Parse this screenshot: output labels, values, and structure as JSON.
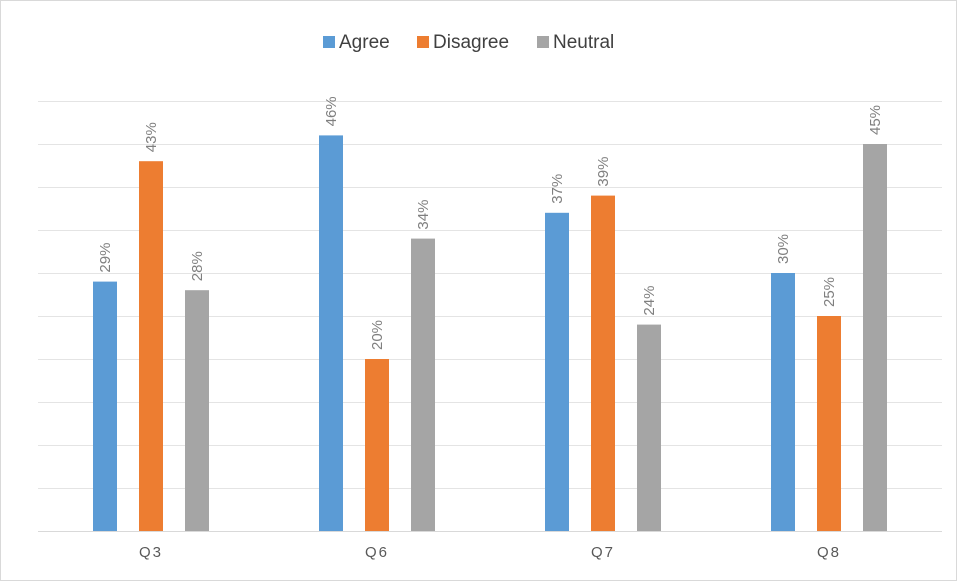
{
  "chart_data": {
    "type": "bar",
    "categories": [
      "Q3",
      "Q6",
      "Q7",
      "Q8"
    ],
    "series": [
      {
        "name": "Agree",
        "color": "#5b9bd5",
        "values": [
          29,
          46,
          37,
          30
        ]
      },
      {
        "name": "Disagree",
        "color": "#ed7d31",
        "values": [
          43,
          20,
          39,
          25
        ]
      },
      {
        "name": "Neutral",
        "color": "#a5a5a5",
        "values": [
          28,
          34,
          24,
          45
        ]
      }
    ],
    "data_labels": [
      [
        "29%",
        "43%",
        "28%"
      ],
      [
        "46%",
        "20%",
        "34%"
      ],
      [
        "37%",
        "39%",
        "24%"
      ],
      [
        "30%",
        "25%",
        "45%"
      ]
    ],
    "ylim": [
      0,
      50
    ],
    "y_axis_visible": false,
    "grid": true,
    "legend_position": "top-center",
    "value_unit": "%"
  }
}
